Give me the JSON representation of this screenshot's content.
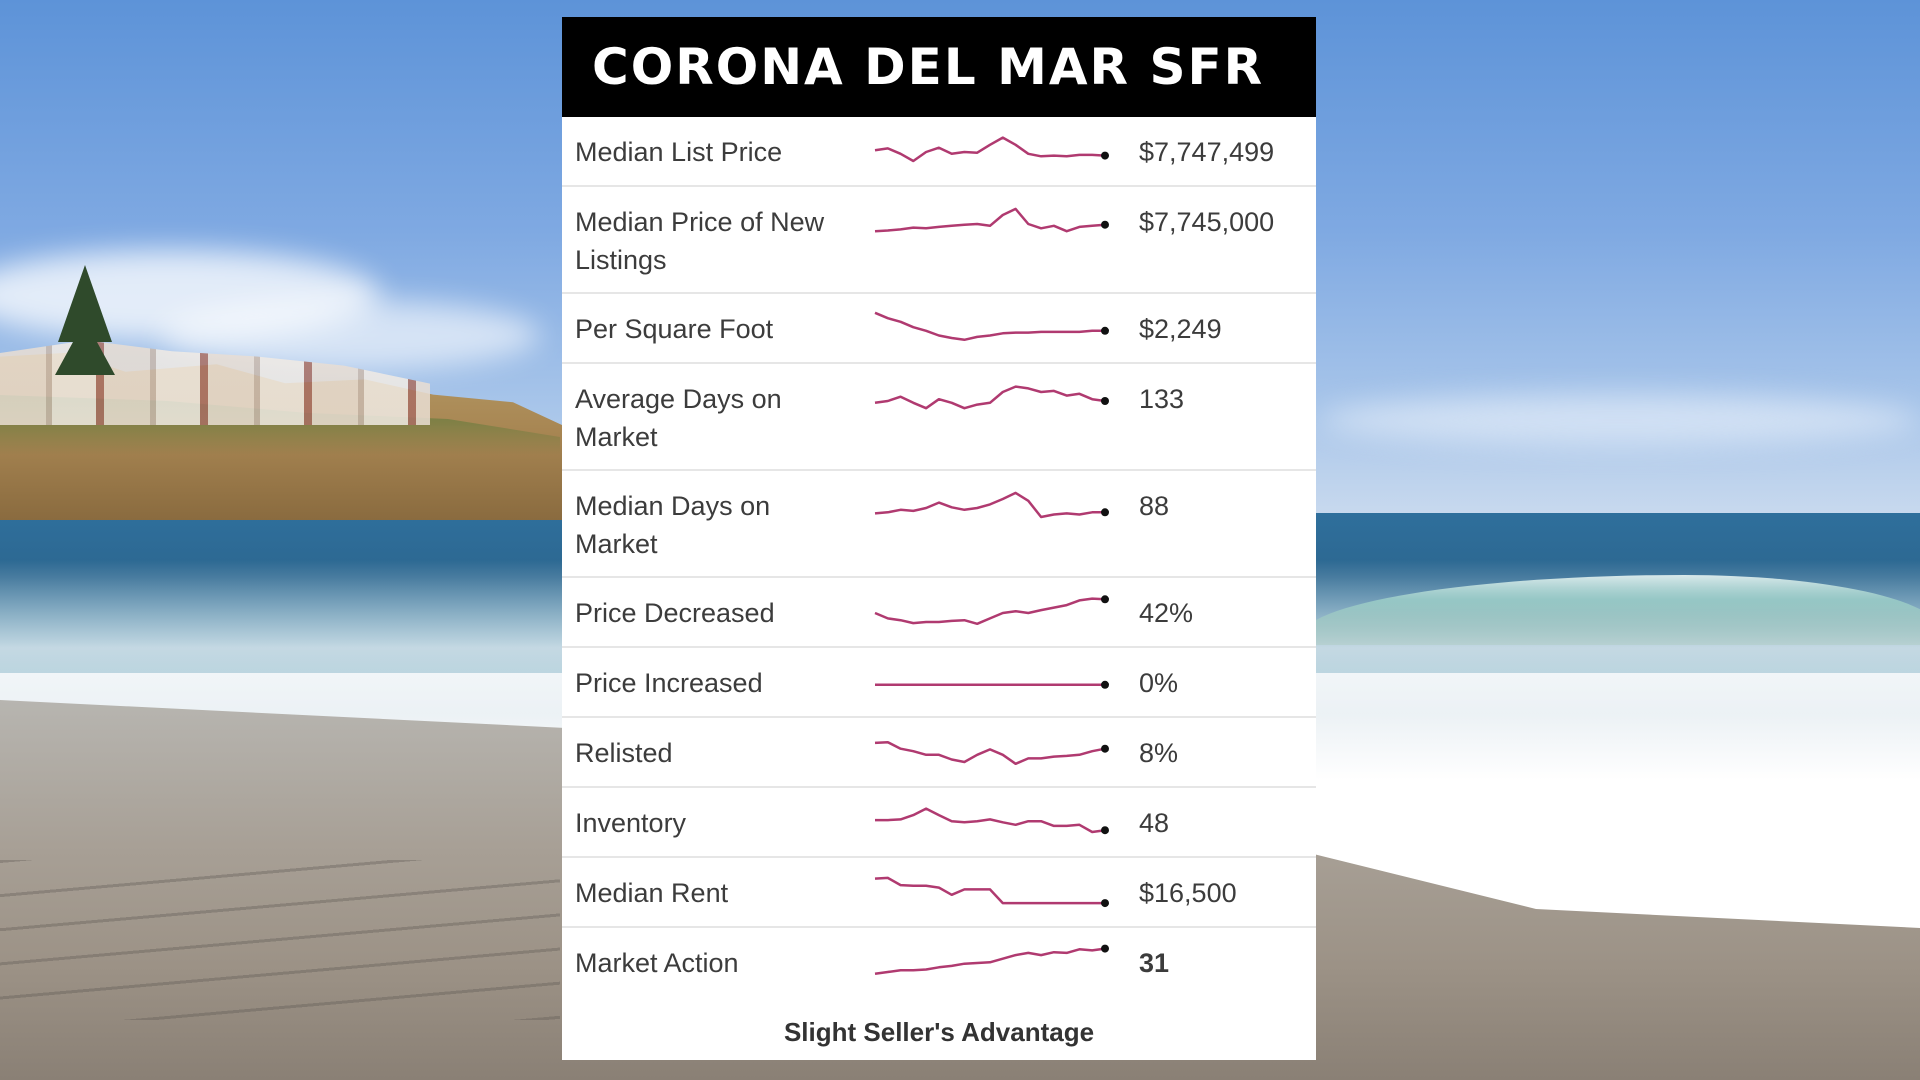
{
  "title": "CORONA DEL MAR SFR",
  "rows": [
    {
      "label": "Median List Price",
      "value": "$7,747,499",
      "trend": [
        0.55,
        0.6,
        0.45,
        0.25,
        0.5,
        0.62,
        0.45,
        0.5,
        0.48,
        0.7,
        0.9,
        0.7,
        0.45,
        0.38,
        0.4,
        0.38,
        0.42,
        0.42,
        0.4
      ]
    },
    {
      "label": "Median Price of New Listings",
      "value": "$7,745,000",
      "trend": [
        0.3,
        0.32,
        0.35,
        0.4,
        0.38,
        0.42,
        0.45,
        0.48,
        0.5,
        0.45,
        0.75,
        0.92,
        0.5,
        0.38,
        0.45,
        0.3,
        0.42,
        0.45,
        0.48
      ]
    },
    {
      "label": "Per Square Foot",
      "value": "$2,249",
      "trend": [
        0.95,
        0.8,
        0.7,
        0.55,
        0.45,
        0.32,
        0.25,
        0.2,
        0.28,
        0.32,
        0.38,
        0.4,
        0.4,
        0.42,
        0.42,
        0.42,
        0.42,
        0.45,
        0.45
      ]
    },
    {
      "label": "Average Days on Market",
      "value": "133",
      "trend": [
        0.45,
        0.5,
        0.62,
        0.45,
        0.3,
        0.55,
        0.45,
        0.3,
        0.4,
        0.45,
        0.75,
        0.9,
        0.85,
        0.75,
        0.78,
        0.65,
        0.7,
        0.55,
        0.5
      ]
    },
    {
      "label": "Median Days on Market",
      "value": "88",
      "trend": [
        0.35,
        0.38,
        0.45,
        0.42,
        0.5,
        0.65,
        0.52,
        0.45,
        0.5,
        0.6,
        0.75,
        0.92,
        0.7,
        0.25,
        0.32,
        0.35,
        0.32,
        0.38,
        0.38
      ]
    },
    {
      "label": "Price Decreased",
      "value": "42%",
      "trend": [
        0.5,
        0.35,
        0.3,
        0.22,
        0.25,
        0.25,
        0.28,
        0.3,
        0.2,
        0.35,
        0.5,
        0.55,
        0.5,
        0.58,
        0.65,
        0.72,
        0.85,
        0.9,
        0.88
      ]
    },
    {
      "label": "Price Increased",
      "value": "0%",
      "trend": [
        0.45,
        0.45,
        0.45,
        0.45,
        0.45,
        0.45,
        0.45,
        0.45,
        0.45,
        0.45,
        0.45,
        0.45,
        0.45,
        0.45,
        0.45,
        0.45,
        0.45,
        0.45,
        0.45
      ]
    },
    {
      "label": "Relisted",
      "value": "8%",
      "trend": [
        0.78,
        0.8,
        0.62,
        0.55,
        0.45,
        0.45,
        0.32,
        0.25,
        0.45,
        0.6,
        0.45,
        0.2,
        0.35,
        0.35,
        0.4,
        0.42,
        0.45,
        0.55,
        0.62
      ]
    },
    {
      "label": "Inventory",
      "value": "48",
      "trend": [
        0.58,
        0.58,
        0.6,
        0.72,
        0.9,
        0.72,
        0.55,
        0.52,
        0.55,
        0.6,
        0.52,
        0.45,
        0.55,
        0.55,
        0.42,
        0.42,
        0.45,
        0.25,
        0.3
      ]
    },
    {
      "label": "Median Rent",
      "value": "$16,500",
      "trend": [
        0.9,
        0.92,
        0.72,
        0.7,
        0.7,
        0.65,
        0.45,
        0.6,
        0.6,
        0.6,
        0.22,
        0.22,
        0.22,
        0.22,
        0.22,
        0.22,
        0.22,
        0.22,
        0.22
      ]
    },
    {
      "label": "Market Action",
      "value": "31",
      "trend": [
        0.2,
        0.25,
        0.3,
        0.3,
        0.32,
        0.38,
        0.42,
        0.48,
        0.5,
        0.52,
        0.62,
        0.72,
        0.78,
        0.72,
        0.8,
        0.78,
        0.88,
        0.85,
        0.9
      ],
      "bold": true
    }
  ],
  "footer_note": "Slight Seller's Advantage",
  "colors": {
    "sparkline": "#b03a70",
    "header_bg": "#000000"
  }
}
